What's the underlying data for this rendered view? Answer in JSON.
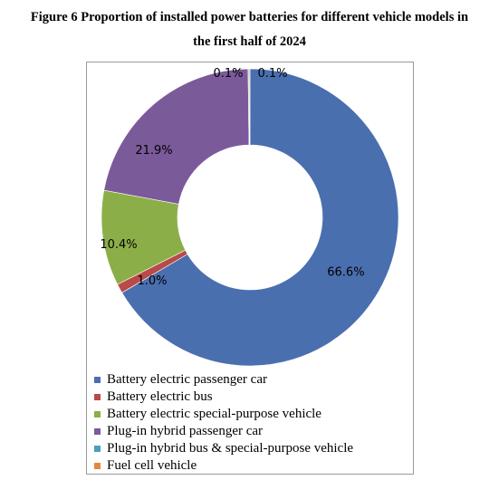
{
  "chart_data": {
    "type": "pie",
    "variant": "donut",
    "title": "Figure 6 Proportion of installed power batteries for different vehicle models in the first half of 2024",
    "title_lines": [
      "Figure 6 Proportion of installed power batteries for different vehicle models in",
      "the first half of 2024"
    ],
    "legend_position": "bottom",
    "slices": [
      {
        "name": "Battery electric passenger car",
        "value": 66.6,
        "label": "66.6%",
        "color": "#4a6faf"
      },
      {
        "name": "Battery electric bus",
        "value": 1.0,
        "label": "1.0%",
        "color": "#b94a48"
      },
      {
        "name": "Battery electric special-purpose vehicle",
        "value": 10.4,
        "label": "10.4%",
        "color": "#8cae49"
      },
      {
        "name": "Plug-in hybrid passenger car",
        "value": 21.9,
        "label": "21.9%",
        "color": "#7b5a9a"
      },
      {
        "name": "Plug-in hybrid bus & special-purpose vehicle",
        "value": 0.1,
        "label": "0.1%",
        "color": "#4a9fba"
      },
      {
        "name": "Fuel cell vehicle",
        "value": 0.1,
        "label": "0.1%",
        "color": "#e08a3c"
      }
    ]
  }
}
